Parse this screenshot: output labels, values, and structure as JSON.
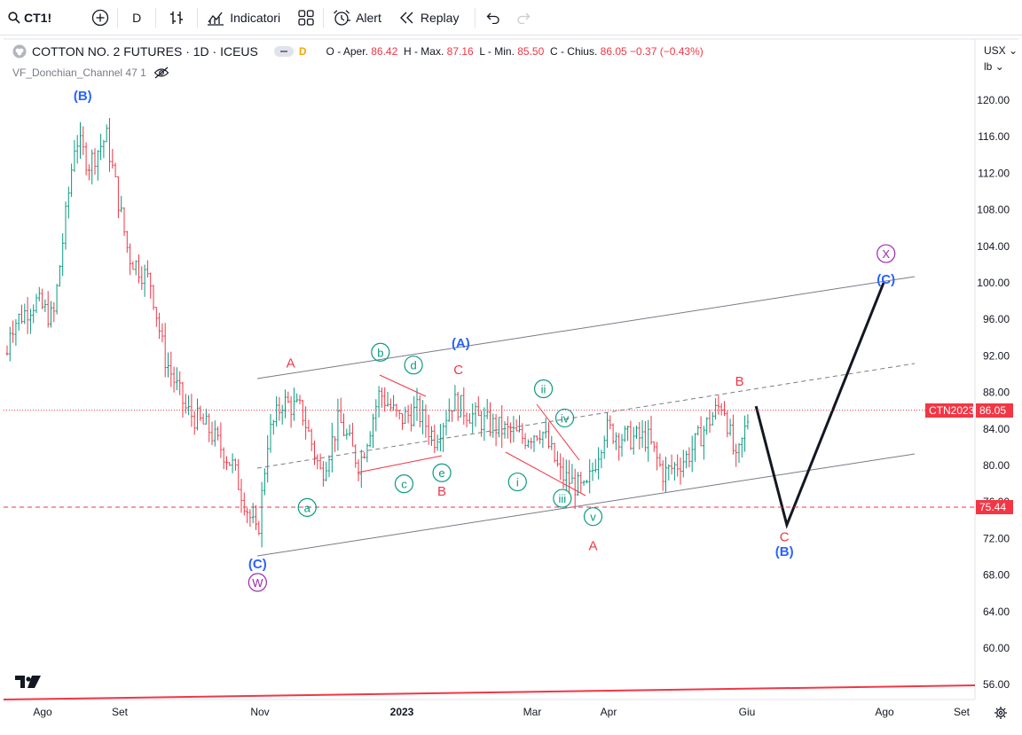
{
  "toolbar": {
    "symbol": "CT1!",
    "interval": "D",
    "indicators_label": "Indicatori",
    "alert_label": "Alert",
    "replay_label": "Replay"
  },
  "legend": {
    "title": "COTTON NO. 2 FUTURES · 1D · ICEUS",
    "flag": "D",
    "open_label": "O - Aper.",
    "open": "86.42",
    "high_label": "H - Max.",
    "high": "87.16",
    "low_label": "L - Min.",
    "low": "85.50",
    "close_label": "C - Chius.",
    "close": "86.05",
    "change": "−0.37 (−0.43%)",
    "indicator": "VF_Donchian_Channel 47 1"
  },
  "scale": {
    "currency": "USX",
    "unit": "lb"
  },
  "price_tags": [
    {
      "name": "CTN2023",
      "value": "86.05",
      "color": "#f23645"
    },
    {
      "name": "",
      "value": "75.44",
      "color": "#f23645"
    }
  ],
  "chart_data": {
    "type": "ohlc",
    "y_ticks": [
      "120.00",
      "116.00",
      "112.00",
      "108.00",
      "104.00",
      "100.00",
      "96.00",
      "92.00",
      "88.00",
      "84.00",
      "80.00",
      "76.00",
      "72.00",
      "68.00",
      "64.00",
      "60.00",
      "56.00"
    ],
    "x_ticks": [
      "Ago",
      "Set",
      "Nov",
      "2023",
      "Mar",
      "Apr",
      "Giu",
      "Ago",
      "Set"
    ],
    "ylim": [
      52,
      124
    ],
    "horizontal_lines": [
      86.05,
      75.44
    ],
    "projection": [
      {
        "d": "2023-05-30",
        "p": 86.5
      },
      {
        "d": "2023-06-12",
        "p": 73.5
      },
      {
        "d": "2023-07-23",
        "p": 100.0
      }
    ],
    "wave_labels": [
      {
        "text": "(B)",
        "d": "2022-08-18",
        "p": 120.5,
        "color": "#2962ff",
        "circle": false
      },
      {
        "text": "(C)",
        "d": "2022-10-31",
        "p": 69.2,
        "color": "#2962ff",
        "circle": false
      },
      {
        "text": "W",
        "d": "2022-10-31",
        "p": 67.2,
        "color": "#9c27b0",
        "circle": true
      },
      {
        "text": "A",
        "d": "2022-11-14",
        "p": 91.2,
        "color": "#f23645",
        "circle": false
      },
      {
        "text": "a",
        "d": "2022-11-21",
        "p": 75.4,
        "color": "#089981",
        "circle": true
      },
      {
        "text": "b",
        "d": "2022-12-22",
        "p": 92.4,
        "color": "#089981",
        "circle": true
      },
      {
        "text": "d",
        "d": "2023-01-05",
        "p": 91.0,
        "color": "#089981",
        "circle": true
      },
      {
        "text": "(A)",
        "d": "2023-01-25",
        "p": 93.4,
        "color": "#2962ff",
        "circle": false
      },
      {
        "text": "C",
        "d": "2023-01-24",
        "p": 90.5,
        "color": "#f23645",
        "circle": false
      },
      {
        "text": "c",
        "d": "2023-01-01",
        "p": 78.0,
        "color": "#089981",
        "circle": true
      },
      {
        "text": "e",
        "d": "2023-01-17",
        "p": 79.2,
        "color": "#089981",
        "circle": true
      },
      {
        "text": "B",
        "d": "2023-01-17",
        "p": 77.2,
        "color": "#f23645",
        "circle": false
      },
      {
        "text": "i",
        "d": "2023-02-18",
        "p": 78.2,
        "color": "#089981",
        "circle": true
      },
      {
        "text": "ii",
        "d": "2023-03-01",
        "p": 88.4,
        "color": "#089981",
        "circle": true
      },
      {
        "text": "iv",
        "d": "2023-03-10",
        "p": 85.2,
        "color": "#089981",
        "circle": true
      },
      {
        "text": "iii",
        "d": "2023-03-09",
        "p": 76.4,
        "color": "#089981",
        "circle": true
      },
      {
        "text": "v",
        "d": "2023-03-22",
        "p": 74.4,
        "color": "#089981",
        "circle": true
      },
      {
        "text": "A",
        "d": "2023-03-22",
        "p": 71.2,
        "color": "#f23645",
        "circle": false
      },
      {
        "text": "B",
        "d": "2023-05-23",
        "p": 89.2,
        "color": "#f23645",
        "circle": false
      },
      {
        "text": "C",
        "d": "2023-06-11",
        "p": 72.2,
        "color": "#f23645",
        "circle": false
      },
      {
        "text": "(B)",
        "d": "2023-06-11",
        "p": 70.6,
        "color": "#2962ff",
        "circle": false
      },
      {
        "text": "X",
        "d": "2023-07-24",
        "p": 103.2,
        "color": "#9c27b0",
        "circle": true
      },
      {
        "text": "(C)",
        "d": "2023-07-24",
        "p": 100.4,
        "color": "#2962ff",
        "circle": false
      }
    ]
  }
}
